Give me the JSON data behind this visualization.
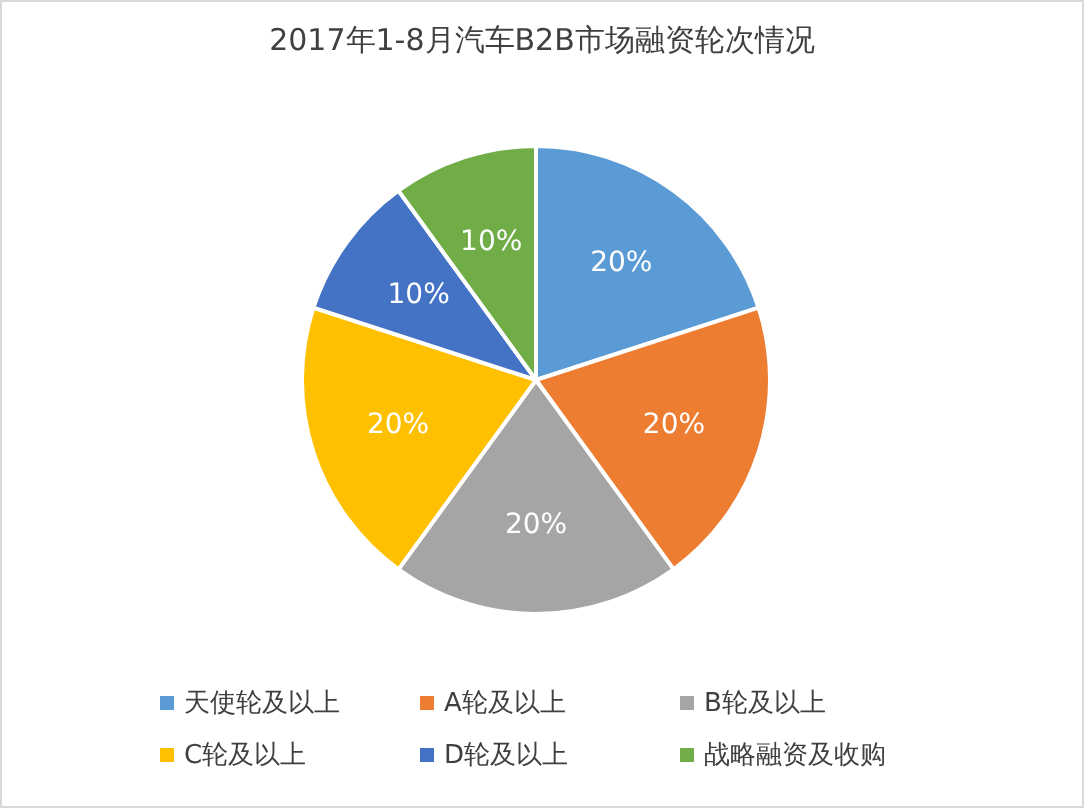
{
  "chart_data": {
    "type": "pie",
    "title": "2017年1-8月汽车B2B市场融资轮次情况",
    "categories": [
      "天使轮及以上",
      "A轮及以上",
      "B轮及以上",
      "C轮及以上",
      "D轮及以上",
      "战略融资及收购"
    ],
    "values": [
      20,
      20,
      20,
      20,
      10,
      10
    ],
    "value_labels": [
      "20%",
      "20%",
      "20%",
      "20%",
      "10%",
      "10%"
    ],
    "colors": [
      "#5b9bd5",
      "#ed7d31",
      "#a5a5a5",
      "#ffc000",
      "#4472c4",
      "#70ad47"
    ],
    "legend": "bottom"
  }
}
